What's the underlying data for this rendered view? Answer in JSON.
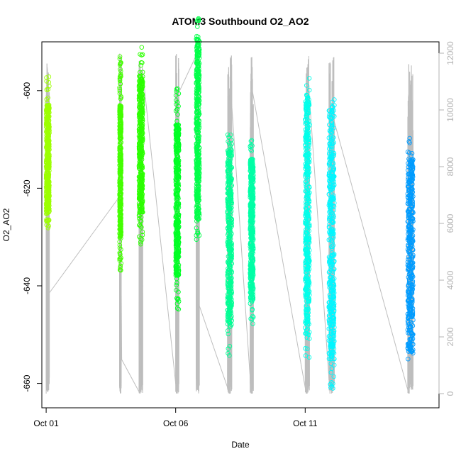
{
  "chart_data": {
    "type": "scatter",
    "title": "ATOM3 Southbound O2_AO2",
    "xlabel": "Date",
    "ylabel": "O2_AO2",
    "xlim": [
      "2023-09-30T20:00",
      "2023-10-16T04:00"
    ],
    "ylim": [
      -665,
      -590
    ],
    "y2lim": [
      -500,
      12400
    ],
    "x_ticks": [
      {
        "value": "2023-10-01",
        "label": "Oct 01"
      },
      {
        "value": "2023-10-06",
        "label": "Oct 06"
      },
      {
        "value": "2023-10-11",
        "label": "Oct 11"
      }
    ],
    "y_ticks": [
      -600,
      -620,
      -640,
      -660
    ],
    "y2_ticks": [
      0,
      2000,
      4000,
      6000,
      8000,
      10000,
      12000
    ],
    "grid": false,
    "legend": "none",
    "series": [
      {
        "kind": "scatter",
        "marker": "open-circle",
        "color_scale": "rainbow by time",
        "clusters": [
          {
            "x_start": "2023-10-01T00:00",
            "x_end": "2023-10-01T03:00",
            "y_low": -629,
            "y_high": -597,
            "y_core_low": -625,
            "y_core_high": -603,
            "color": "#9cff00"
          },
          {
            "x_start": "2023-10-03T20:00",
            "x_end": "2023-10-03T21:30",
            "y_low": -637,
            "y_high": -593,
            "y_core_low": -630,
            "y_core_high": -603,
            "color": "#44ff00"
          },
          {
            "x_start": "2023-10-04T14:00",
            "x_end": "2023-10-04T17:30",
            "y_low": -633,
            "y_high": -591,
            "y_core_low": -625,
            "y_core_high": -597,
            "color": "#2cff00"
          },
          {
            "x_start": "2023-10-06T00:00",
            "x_end": "2023-10-06T03:00",
            "y_low": -645,
            "y_high": -599,
            "y_core_low": -638,
            "y_core_high": -607,
            "color": "#00ff25"
          },
          {
            "x_start": "2023-10-06T19:00",
            "x_end": "2023-10-06T22:00",
            "y_low": -631,
            "y_high": -585,
            "y_core_low": -627,
            "y_core_high": -589,
            "color": "#00ff49"
          },
          {
            "x_start": "2023-10-08T00:00",
            "x_end": "2023-10-08T04:00",
            "y_low": -655,
            "y_high": -609,
            "y_core_low": -648,
            "y_core_high": -612,
            "color": "#00ff95"
          },
          {
            "x_start": "2023-10-08T21:00",
            "x_end": "2023-10-09T00:00",
            "y_low": -648,
            "y_high": -610,
            "y_core_low": -643,
            "y_core_high": -614,
            "color": "#00ffa6"
          },
          {
            "x_start": "2023-10-11T00:00",
            "x_end": "2023-10-11T04:00",
            "y_low": -655,
            "y_high": -597,
            "y_core_low": -650,
            "y_core_high": -601,
            "color": "#00ffea"
          },
          {
            "x_start": "2023-10-11T22:00",
            "x_end": "2023-10-12T03:00",
            "y_low": -662,
            "y_high": -600,
            "y_core_low": -655,
            "y_core_high": -603,
            "color": "#00f6ff"
          },
          {
            "x_start": "2023-10-14T23:00",
            "x_end": "2023-10-15T04:00",
            "y_low": -655,
            "y_high": -609,
            "y_core_low": -654,
            "y_core_high": -614,
            "color": "#009cff"
          }
        ]
      },
      {
        "kind": "line",
        "axis": "right",
        "color": "#bebebe",
        "segments": [
          {
            "x": "2023-10-01T00:00",
            "y": 0
          },
          {
            "x": "2023-10-01T01:00",
            "y": 11500
          },
          {
            "x": "2023-10-01T02:00",
            "y": 3500
          },
          {
            "x": "2023-10-03T21:00",
            "y": 7000
          },
          {
            "x": "2023-10-03T22:00",
            "y": 1200
          },
          {
            "x": "2023-10-04T15:00",
            "y": 0
          },
          {
            "x": "2023-10-04T17:00",
            "y": 11500
          },
          {
            "x": "2023-10-06T01:00",
            "y": 0
          },
          {
            "x": "2023-10-06T01:30",
            "y": 10500
          },
          {
            "x": "2023-10-06T20:00",
            "y": 12000
          },
          {
            "x": "2023-10-06T21:00",
            "y": 3200
          },
          {
            "x": "2023-10-08T02:00",
            "y": 0
          },
          {
            "x": "2023-10-08T02:30",
            "y": 11000
          },
          {
            "x": "2023-10-08T22:00",
            "y": 0
          },
          {
            "x": "2023-10-08T22:30",
            "y": 10800
          },
          {
            "x": "2023-10-11T01:00",
            "y": 0
          },
          {
            "x": "2023-10-11T02:00",
            "y": 11500
          },
          {
            "x": "2023-10-11T23:00",
            "y": 0
          },
          {
            "x": "2023-10-12T00:00",
            "y": 10000
          },
          {
            "x": "2023-10-15T00:00",
            "y": 0
          },
          {
            "x": "2023-10-15T02:00",
            "y": 9900
          }
        ]
      }
    ]
  }
}
